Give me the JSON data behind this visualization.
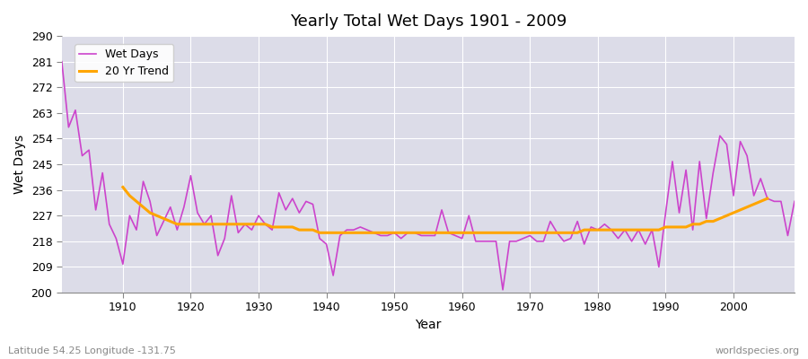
{
  "title": "Yearly Total Wet Days 1901 - 2009",
  "xlabel": "Year",
  "ylabel": "Wet Days",
  "footnote_left": "Latitude 54.25 Longitude -131.75",
  "footnote_right": "worldspecies.org",
  "ylim": [
    200,
    290
  ],
  "yticks": [
    200,
    209,
    218,
    227,
    236,
    245,
    254,
    263,
    272,
    281,
    290
  ],
  "xlim": [
    1901,
    2009
  ],
  "line_color": "#CC44CC",
  "trend_color": "#FFA500",
  "plot_bg_color": "#DCDCE8",
  "fig_bg_color": "#FFFFFF",
  "legend_wet": "Wet Days",
  "legend_trend": "20 Yr Trend",
  "years": [
    1901,
    1902,
    1903,
    1904,
    1905,
    1906,
    1907,
    1908,
    1909,
    1910,
    1911,
    1912,
    1913,
    1914,
    1915,
    1916,
    1917,
    1918,
    1919,
    1920,
    1921,
    1922,
    1923,
    1924,
    1925,
    1926,
    1927,
    1928,
    1929,
    1930,
    1931,
    1932,
    1933,
    1934,
    1935,
    1936,
    1937,
    1938,
    1939,
    1940,
    1941,
    1942,
    1943,
    1944,
    1945,
    1946,
    1947,
    1948,
    1949,
    1950,
    1951,
    1952,
    1953,
    1954,
    1955,
    1956,
    1957,
    1958,
    1959,
    1960,
    1961,
    1962,
    1963,
    1964,
    1965,
    1966,
    1967,
    1968,
    1969,
    1970,
    1971,
    1972,
    1973,
    1974,
    1975,
    1976,
    1977,
    1978,
    1979,
    1980,
    1981,
    1982,
    1983,
    1984,
    1985,
    1986,
    1987,
    1988,
    1989,
    1990,
    1991,
    1992,
    1993,
    1994,
    1995,
    1996,
    1997,
    1998,
    1999,
    2000,
    2001,
    2002,
    2003,
    2004,
    2005,
    2006,
    2007,
    2008,
    2009
  ],
  "wet_days": [
    281,
    258,
    264,
    248,
    250,
    229,
    242,
    224,
    219,
    210,
    227,
    222,
    239,
    232,
    220,
    225,
    230,
    222,
    230,
    241,
    228,
    224,
    227,
    213,
    219,
    234,
    221,
    224,
    222,
    227,
    224,
    222,
    235,
    229,
    233,
    228,
    232,
    231,
    219,
    217,
    206,
    220,
    222,
    222,
    223,
    222,
    221,
    220,
    220,
    221,
    219,
    221,
    221,
    220,
    220,
    220,
    229,
    221,
    220,
    219,
    227,
    218,
    218,
    218,
    218,
    201,
    218,
    218,
    219,
    220,
    218,
    218,
    225,
    221,
    218,
    219,
    225,
    217,
    223,
    222,
    224,
    222,
    219,
    222,
    218,
    222,
    217,
    222,
    209,
    228,
    246,
    228,
    243,
    222,
    246,
    226,
    242,
    255,
    252,
    234,
    253,
    248,
    234,
    240,
    233,
    232,
    232,
    220,
    232
  ],
  "trend_values": [
    null,
    null,
    null,
    null,
    null,
    null,
    null,
    null,
    null,
    237,
    234,
    232,
    230,
    228,
    227,
    226,
    225,
    224,
    224,
    224,
    224,
    224,
    224,
    224,
    224,
    224,
    224,
    224,
    224,
    224,
    224,
    223,
    223,
    223,
    223,
    222,
    222,
    222,
    221,
    221,
    221,
    221,
    221,
    221,
    221,
    221,
    221,
    221,
    221,
    221,
    221,
    221,
    221,
    221,
    221,
    221,
    221,
    221,
    221,
    221,
    221,
    221,
    221,
    221,
    221,
    221,
    221,
    221,
    221,
    221,
    221,
    221,
    221,
    221,
    221,
    221,
    221,
    222,
    222,
    222,
    222,
    222,
    222,
    222,
    222,
    222,
    222,
    222,
    222,
    223,
    223,
    223,
    223,
    224,
    224,
    225,
    225,
    226,
    227,
    228,
    229,
    230,
    231,
    232,
    233,
    null,
    null,
    null,
    null
  ]
}
